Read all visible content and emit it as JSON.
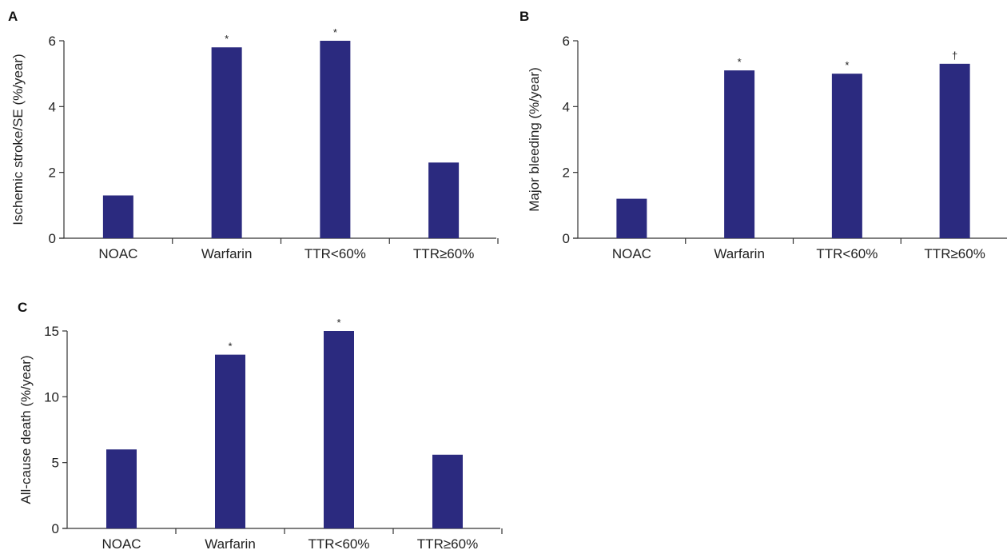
{
  "colors": {
    "bar": "#2b2a7f",
    "axis": "#333333",
    "text": "#222222"
  },
  "chart_data": [
    {
      "type": "bar",
      "panel_label": "A",
      "ylabel": "Ischemic stroke/SE (%/year)",
      "xlabel": "",
      "categories": [
        "NOAC",
        "Warfarin",
        "TTR<60%",
        "TTR≥60%"
      ],
      "values": [
        1.3,
        5.8,
        6.0,
        2.3
      ],
      "annotations": [
        "",
        "*",
        "*",
        ""
      ],
      "ylim": [
        0,
        6
      ],
      "yticks": [
        0,
        2,
        4,
        6
      ],
      "grid": false,
      "legend": "none"
    },
    {
      "type": "bar",
      "panel_label": "B",
      "ylabel": "Major bleeding (%/year)",
      "xlabel": "",
      "categories": [
        "NOAC",
        "Warfarin",
        "TTR<60%",
        "TTR≥60%"
      ],
      "values": [
        1.2,
        5.1,
        5.0,
        5.3
      ],
      "annotations": [
        "",
        "*",
        "*",
        "†"
      ],
      "ylim": [
        0,
        6
      ],
      "yticks": [
        0,
        2,
        4,
        6
      ],
      "grid": false,
      "legend": "none"
    },
    {
      "type": "bar",
      "panel_label": "C",
      "ylabel": "All-cause death (%/year)",
      "xlabel": "",
      "categories": [
        "NOAC",
        "Warfarin",
        "TTR<60%",
        "TTR≥60%"
      ],
      "values": [
        6.0,
        13.2,
        15.0,
        5.6
      ],
      "annotations": [
        "",
        "*",
        "*",
        ""
      ],
      "ylim": [
        0,
        15
      ],
      "yticks": [
        0,
        5,
        10,
        15
      ],
      "grid": false,
      "legend": "none"
    }
  ]
}
